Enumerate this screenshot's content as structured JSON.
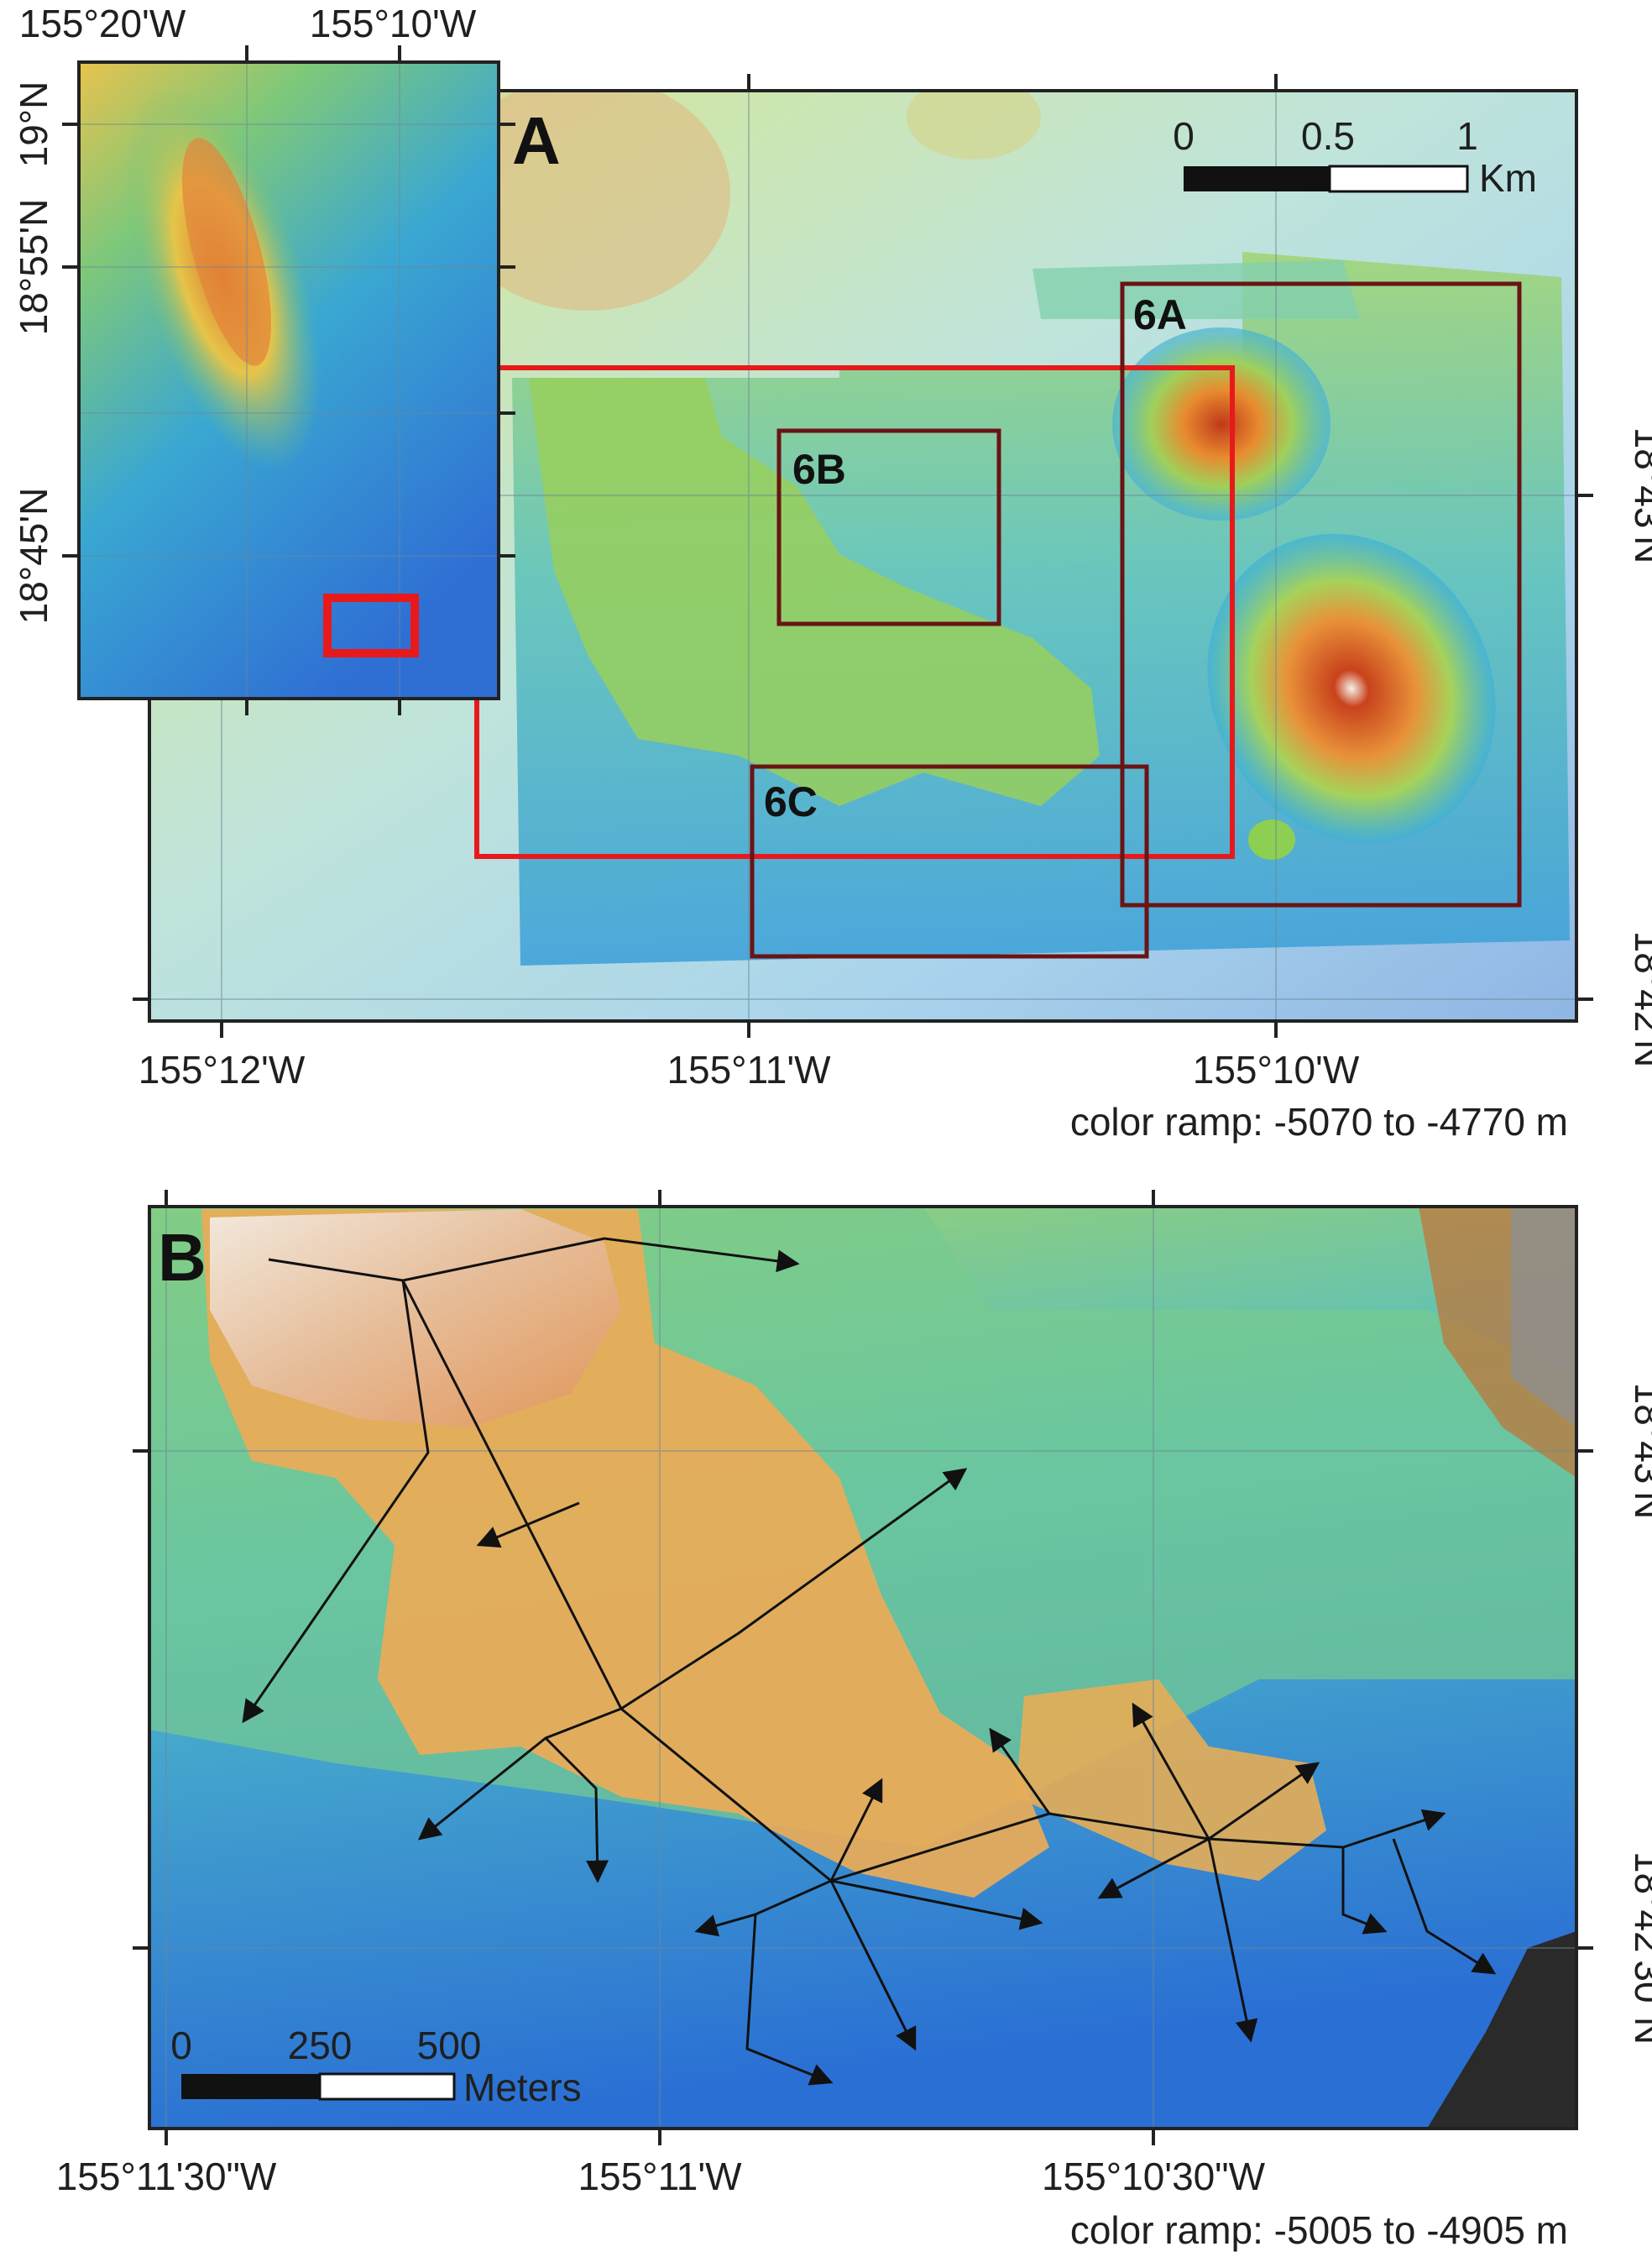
{
  "panel_a": {
    "letter": "A",
    "x_ticks": [
      "155°12'W",
      "155°11'W",
      "155°10'W"
    ],
    "y_ticks": [
      "18°43'N",
      "18°42'N"
    ],
    "color_ramp": "color ramp: -5070 to -4770 m",
    "scale_bar": {
      "labels": [
        "0",
        "0.5",
        "1"
      ],
      "unit": "Km"
    },
    "boxes": [
      "6A",
      "6B",
      "6C"
    ],
    "inset": {
      "x_ticks": [
        "155°20'W",
        "155°10'W"
      ],
      "y_ticks": [
        "19°N",
        "18°55'N",
        "18°45'N"
      ]
    }
  },
  "panel_b": {
    "letter": "B",
    "x_ticks": [
      "155°11'30\"W",
      "155°11'W",
      "155°10'30\"W"
    ],
    "y_ticks": [
      "18°43'N",
      "18°42'30\"N"
    ],
    "color_ramp": "color ramp: -5005 to -4905 m",
    "scale_bar": {
      "labels": [
        "0",
        "250",
        "500"
      ],
      "unit": "Meters"
    },
    "flow_arrows": 16
  },
  "colors": {
    "deep": "#1f6fd6",
    "mid": "#35b4d8",
    "shallow_green": "#8fd05a",
    "shallow_yellow": "#e8d44a",
    "peak_orange": "#e0852f",
    "peak_red": "#c74a1e",
    "outline_red": "#e8191b",
    "box_dark": "#6a1414"
  }
}
